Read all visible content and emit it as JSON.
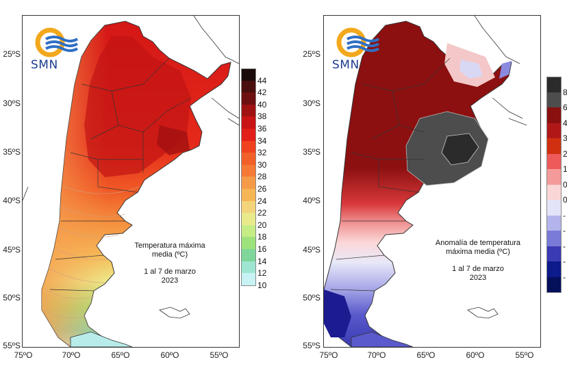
{
  "logo": {
    "text": "SMN"
  },
  "panels": [
    {
      "id": "temperature",
      "title_line1": "Temperatura máxima",
      "title_line2": "media (ºC)",
      "date_line1": "1 al 7 de marzo",
      "date_line2": "2023",
      "lat_labels": [
        "25ºS",
        "30ºS",
        "35ºS",
        "40ºS",
        "45ºS",
        "50ºS",
        "55ºS"
      ],
      "lon_labels": [
        "75ºO",
        "70ºO",
        "65ºO",
        "60ºO",
        "55ºO"
      ],
      "legend": {
        "ticks": [
          "44",
          "42",
          "40",
          "38",
          "36",
          "34",
          "32",
          "30",
          "28",
          "26",
          "24",
          "22",
          "20",
          "18",
          "16",
          "14",
          "12",
          "10"
        ],
        "colors": [
          "#1a0a0a",
          "#4a0e0e",
          "#6e1010",
          "#a01212",
          "#c81414",
          "#e21e1a",
          "#f0421e",
          "#f2602a",
          "#f47a36",
          "#f59a48",
          "#f6b656",
          "#f3d47a",
          "#e8ea8c",
          "#c6ec86",
          "#9ee27c",
          "#7ed69a",
          "#9ee6d2",
          "#c8f2f4"
        ]
      }
    },
    {
      "id": "anomaly",
      "title_line1": "Anomalía de temperatura",
      "title_line2": "máxima media (ºC)",
      "date_line1": "1 al 7 de marzo",
      "date_line2": "2023",
      "lat_labels": [
        "25ºS",
        "30ºS",
        "35ºS",
        "40ºS",
        "45ºS",
        "50ºS",
        "55ºS"
      ],
      "lon_labels": [
        "75ºO",
        "70ºO",
        "65ºO",
        "60ºO",
        "55ºO"
      ],
      "legend": {
        "ticks": [
          "8",
          "6",
          "4",
          "3",
          "2",
          "1",
          "0",
          "0",
          "-",
          "-",
          "-",
          "-",
          "-"
        ],
        "colors": [
          "#2b2b2b",
          "#4d4d4d",
          "#8a1010",
          "#b01818",
          "#d03010",
          "#ee5a5a",
          "#f59a9a",
          "#fbd6d6",
          "#e4e4f8",
          "#b4b4ec",
          "#7a7ad8",
          "#3a3ab4",
          "#0c1a8a",
          "#05105a"
        ]
      }
    }
  ],
  "colors": {
    "temp_hot": "#c81414",
    "temp_warm": "#ef4a22",
    "temp_mid": "#f5a04a",
    "temp_cool": "#d8ec86",
    "temp_cold": "#8ee0c4",
    "anom_dark": "#8a1010",
    "anom_gray": "#4d4d4d",
    "anom_blue": "#3a3ab4"
  }
}
